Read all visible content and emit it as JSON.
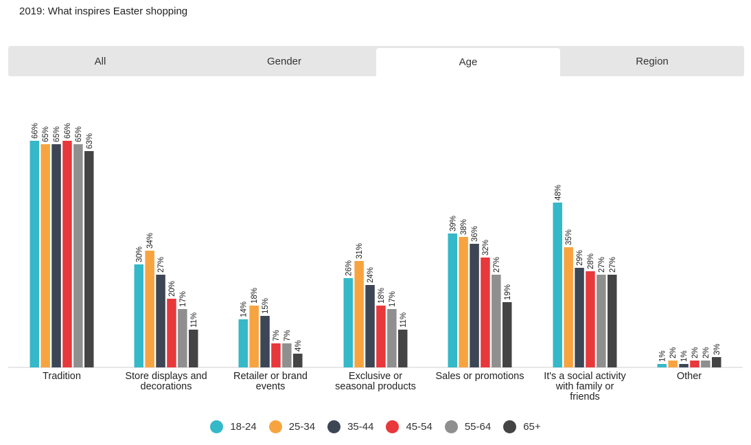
{
  "title": "2019: What inspires Easter shopping",
  "tabs": [
    {
      "label": "All",
      "active": false
    },
    {
      "label": "Gender",
      "active": false
    },
    {
      "label": "Age",
      "active": true
    },
    {
      "label": "Region",
      "active": false
    }
  ],
  "chart_data": {
    "type": "bar",
    "categories": [
      [
        "Tradition"
      ],
      [
        "Store displays and",
        "decorations"
      ],
      [
        "Retailer or brand",
        "events"
      ],
      [
        "Exclusive or",
        "seasonal products"
      ],
      [
        "Sales or promotions"
      ],
      [
        "It's a social activity",
        "with family or",
        "friends"
      ],
      [
        "Other"
      ]
    ],
    "series": [
      {
        "name": "18-24",
        "color": "#35b8c8",
        "values": [
          66,
          30,
          14,
          26,
          39,
          48,
          1
        ]
      },
      {
        "name": "25-34",
        "color": "#f7a440",
        "values": [
          65,
          34,
          18,
          31,
          38,
          35,
          2
        ]
      },
      {
        "name": "35-44",
        "color": "#3d4655",
        "values": [
          65,
          27,
          15,
          24,
          36,
          29,
          1
        ]
      },
      {
        "name": "45-54",
        "color": "#e8383b",
        "values": [
          66,
          20,
          7,
          18,
          32,
          28,
          2
        ]
      },
      {
        "name": "55-64",
        "color": "#8f8f8f",
        "values": [
          65,
          17,
          7,
          17,
          27,
          27,
          2
        ]
      },
      {
        "name": "65+",
        "color": "#444444",
        "values": [
          63,
          11,
          4,
          11,
          19,
          27,
          3
        ]
      }
    ],
    "value_suffix": "%",
    "ylim": [
      0,
      70
    ],
    "legend_position": "bottom",
    "grid": false
  }
}
